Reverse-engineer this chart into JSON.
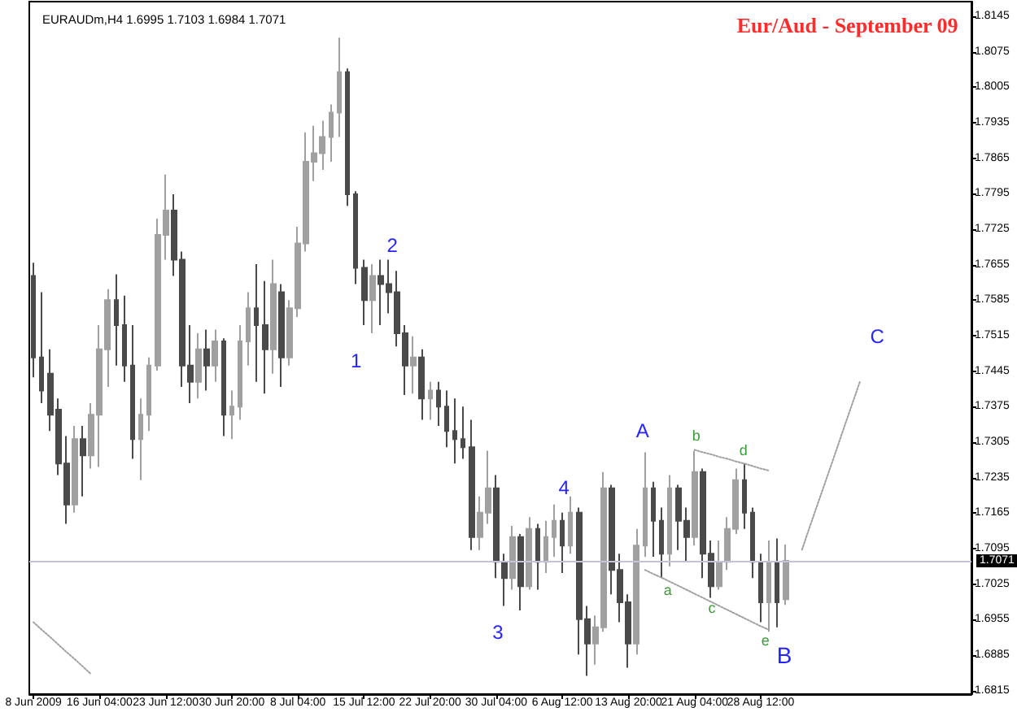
{
  "chart_data": {
    "type": "candlestick",
    "title": "Eur/Aud - September 09",
    "subtitle": "EURAUDm,H4 1.6995 1.7103 1.6984 1.7071",
    "categories": [
      "8 Jun 2009",
      null,
      null,
      null,
      null,
      null,
      null,
      null,
      "16 Jun 04:00",
      null,
      null,
      null,
      null,
      null,
      null,
      null,
      "23 Jun 12:00",
      null,
      null,
      null,
      null,
      null,
      null,
      null,
      "30 Jun 20:00",
      null,
      null,
      null,
      null,
      null,
      null,
      null,
      "8 Jul 04:00",
      null,
      null,
      null,
      null,
      null,
      null,
      null,
      "15 Jul 12:00",
      null,
      null,
      null,
      null,
      null,
      null,
      null,
      "22 Jul 20:00",
      null,
      null,
      null,
      null,
      null,
      null,
      null,
      "30 Jul 04:00",
      null,
      null,
      null,
      null,
      null,
      null,
      null,
      "6 Aug 12:00",
      null,
      null,
      null,
      null,
      null,
      null,
      null,
      "13 Aug 20:00",
      null,
      null,
      null,
      null,
      null,
      null,
      null,
      "21 Aug 04:00",
      null,
      null,
      null,
      null,
      null,
      null,
      null,
      "28 Aug 12:00",
      null,
      null,
      null,
      null,
      null,
      null,
      null,
      null,
      null,
      null,
      null,
      null,
      null,
      null,
      null,
      null,
      null,
      null,
      null,
      null,
      null,
      null,
      null,
      null,
      null
    ],
    "ylim": [
      1.6808,
      1.8174
    ],
    "yticks": [
      1.6815,
      1.6885,
      1.6955,
      1.7025,
      1.7095,
      1.7165,
      1.7235,
      1.7305,
      1.7375,
      1.7445,
      1.7515,
      1.7585,
      1.7655,
      1.7725,
      1.7795,
      1.7865,
      1.7935,
      1.8005,
      1.8075,
      1.8145
    ],
    "series": [
      {
        "colors": [
          "#4a4a4a",
          "#4a4a4a",
          "#4a4a4a",
          "#4a4a4a",
          "#4a4a4a",
          "#a0a0a0",
          "#4a4a4a",
          "#a0a0a0",
          "#a0a0a0",
          "#a0a0a0",
          "#4a4a4a",
          "#4a4a4a",
          "#4a4a4a",
          "#a0a0a0",
          "#a0a0a0",
          "#a0a0a0",
          "#a0a0a0",
          "#4a4a4a",
          "#4a4a4a",
          "#4a4a4a",
          "#a0a0a0",
          "#4a4a4a",
          "#a0a0a0",
          "#4a4a4a",
          "#a0a0a0",
          "#a0a0a0",
          "#a0a0a0",
          "#4a4a4a",
          "#4a4a4a",
          "#a0a0a0",
          "#4a4a4a",
          "#a0a0a0",
          "#a0a0a0",
          "#a0a0a0",
          "#a0a0a0",
          "#a0a0a0",
          "#a0a0a0",
          "#a0a0a0",
          "#4a4a4a",
          "#4a4a4a",
          "#4a4a4a",
          "#a0a0a0",
          "#4a4a4a",
          "#4a4a4a",
          "#4a4a4a",
          "#4a4a4a",
          "#a0a0a0",
          "#4a4a4a",
          "#a0a0a0",
          "#4a4a4a",
          "#4a4a4a",
          "#4a4a4a",
          "#4a4a4a",
          "#4a4a4a",
          "#a0a0a0",
          "#a0a0a0",
          "#4a4a4a",
          "#4a4a4a",
          "#a0a0a0",
          "#4a4a4a",
          "#a0a0a0",
          "#4a4a4a",
          "#a0a0a0",
          "#a0a0a0",
          "#4a4a4a",
          "#a0a0a0",
          "#4a4a4a",
          "#4a4a4a",
          "#a0a0a0",
          "#a0a0a0",
          "#4a4a4a",
          "#4a4a4a",
          "#4a4a4a",
          "#a0a0a0",
          "#a0a0a0",
          "#4a4a4a",
          "#4a4a4a",
          "#a0a0a0",
          "#4a4a4a",
          "#4a4a4a",
          "#a0a0a0",
          "#4a4a4a",
          "#4a4a4a",
          "#a0a0a0",
          "#a0a0a0",
          "#a0a0a0",
          "#4a4a4a",
          "#4a4a4a",
          "#4a4a4a",
          "#a0a0a0",
          "#4a4a4a",
          "#a0a0a0",
          null,
          null,
          null,
          null,
          null,
          null,
          null,
          null,
          null,
          null,
          null,
          null,
          null,
          null,
          null,
          null,
          null,
          null,
          null,
          null,
          null,
          null
        ],
        "ohlc": [
          [
            1.7633,
            1.7659,
            1.7433,
            1.7472
          ],
          [
            1.7472,
            1.7601,
            1.7382,
            1.7407
          ],
          [
            1.744,
            1.7488,
            1.7327,
            1.7359
          ],
          [
            1.7369,
            1.7391,
            1.724,
            1.7263
          ],
          [
            1.7263,
            1.7317,
            1.7144,
            1.7182
          ],
          [
            1.7182,
            1.7337,
            1.7166,
            1.7311
          ],
          [
            1.7311,
            1.7337,
            1.7198,
            1.7279
          ],
          [
            1.7279,
            1.7382,
            1.7253,
            1.7359
          ],
          [
            1.7359,
            1.7536,
            1.7256,
            1.7488
          ],
          [
            1.7488,
            1.7607,
            1.7414,
            1.7585
          ],
          [
            1.7585,
            1.7636,
            1.7456,
            1.7536
          ],
          [
            1.7536,
            1.7594,
            1.7424,
            1.7456
          ],
          [
            1.7456,
            1.7536,
            1.7272,
            1.7311
          ],
          [
            1.7311,
            1.7391,
            1.723,
            1.7359
          ],
          [
            1.7359,
            1.7472,
            1.7327,
            1.7456
          ],
          [
            1.7456,
            1.7746,
            1.7446,
            1.7714
          ],
          [
            1.7714,
            1.7833,
            1.7665,
            1.7762
          ],
          [
            1.7762,
            1.7794,
            1.7633,
            1.7665
          ],
          [
            1.7665,
            1.7681,
            1.7414,
            1.7456
          ],
          [
            1.7456,
            1.7536,
            1.7382,
            1.7424
          ],
          [
            1.7424,
            1.752,
            1.7391,
            1.7488
          ],
          [
            1.7488,
            1.7527,
            1.7407,
            1.7456
          ],
          [
            1.7456,
            1.7527,
            1.7424,
            1.7504
          ],
          [
            1.7504,
            1.751,
            1.7317,
            1.7359
          ],
          [
            1.7359,
            1.7407,
            1.7311,
            1.7375
          ],
          [
            1.7375,
            1.7536,
            1.7349,
            1.7504
          ],
          [
            1.7504,
            1.7601,
            1.7456,
            1.7569
          ],
          [
            1.7569,
            1.7656,
            1.7424,
            1.7536
          ],
          [
            1.7536,
            1.7623,
            1.7401,
            1.7488
          ],
          [
            1.7488,
            1.7665,
            1.744,
            1.7617
          ],
          [
            1.7601,
            1.7617,
            1.7414,
            1.7472
          ],
          [
            1.7472,
            1.7585,
            1.7456,
            1.7569
          ],
          [
            1.7569,
            1.773,
            1.7552,
            1.7697
          ],
          [
            1.7697,
            1.7916,
            1.7681,
            1.7858
          ],
          [
            1.7858,
            1.7929,
            1.782,
            1.7875
          ],
          [
            1.7875,
            1.7939,
            1.7842,
            1.7907
          ],
          [
            1.7907,
            1.7971,
            1.7858,
            1.7955
          ],
          [
            1.7955,
            1.8103,
            1.7907,
            1.8035
          ],
          [
            1.8035,
            1.8042,
            1.7771,
            1.7794
          ],
          [
            1.7794,
            1.78,
            1.7617,
            1.7649
          ],
          [
            1.7649,
            1.7665,
            1.7536,
            1.7585
          ],
          [
            1.7585,
            1.7656,
            1.752,
            1.7633
          ],
          [
            1.7633,
            1.7665,
            1.7536,
            1.7617
          ],
          [
            1.7617,
            1.7665,
            1.7559,
            1.7601
          ],
          [
            1.7601,
            1.7643,
            1.7494,
            1.752
          ],
          [
            1.752,
            1.7536,
            1.7398,
            1.7456
          ],
          [
            1.7456,
            1.7514,
            1.7401,
            1.7472
          ],
          [
            1.7472,
            1.7488,
            1.7349,
            1.7391
          ],
          [
            1.7391,
            1.7424,
            1.7349,
            1.7407
          ],
          [
            1.7407,
            1.7424,
            1.7337,
            1.7375
          ],
          [
            1.7375,
            1.7407,
            1.7295,
            1.7327
          ],
          [
            1.7327,
            1.7391,
            1.7263,
            1.7311
          ],
          [
            1.7311,
            1.7375,
            1.7272,
            1.7295
          ],
          [
            1.7295,
            1.7349,
            1.7092,
            1.7118
          ],
          [
            1.7118,
            1.7198,
            1.7092,
            1.7166
          ],
          [
            1.7166,
            1.7288,
            1.7144,
            1.7214
          ],
          [
            1.7214,
            1.724,
            1.7037,
            1.7069
          ],
          [
            1.7069,
            1.7085,
            1.6982,
            1.7037
          ],
          [
            1.7037,
            1.714,
            1.7014,
            1.7118
          ],
          [
            1.7118,
            1.7124,
            1.6973,
            1.7021
          ],
          [
            1.7021,
            1.7157,
            1.7014,
            1.7134
          ],
          [
            1.7134,
            1.7144,
            1.7014,
            1.7069
          ],
          [
            1.7069,
            1.715,
            1.7047,
            1.7118
          ],
          [
            1.7118,
            1.7182,
            1.7079,
            1.715
          ],
          [
            1.715,
            1.7166,
            1.7047,
            1.7101
          ],
          [
            1.7101,
            1.7198,
            1.7085,
            1.7166
          ],
          [
            1.7166,
            1.7176,
            1.6886,
            1.6956
          ],
          [
            1.6956,
            1.6982,
            1.6844,
            1.6908
          ],
          [
            1.6908,
            1.6963,
            1.6866,
            1.694
          ],
          [
            1.694,
            1.7246,
            1.6931,
            1.7214
          ],
          [
            1.7214,
            1.7221,
            1.7005,
            1.7053
          ],
          [
            1.7053,
            1.7085,
            1.695,
            1.6989
          ],
          [
            1.6989,
            1.7005,
            1.686,
            1.6908
          ],
          [
            1.6908,
            1.7134,
            1.6886,
            1.7101
          ],
          [
            1.7101,
            1.7285,
            1.7079,
            1.7214
          ],
          [
            1.7214,
            1.7227,
            1.7079,
            1.715
          ],
          [
            1.715,
            1.7176,
            1.7037,
            1.7085
          ],
          [
            1.7085,
            1.724,
            1.706,
            1.7214
          ],
          [
            1.7214,
            1.7221,
            1.7092,
            1.715
          ],
          [
            1.715,
            1.7176,
            1.7069,
            1.7118
          ],
          [
            1.7118,
            1.7288,
            1.7101,
            1.7246
          ],
          [
            1.7246,
            1.7253,
            1.7037,
            1.7085
          ],
          [
            1.7085,
            1.7111,
            1.6998,
            1.7021
          ],
          [
            1.7021,
            1.7111,
            1.7014,
            1.7069
          ],
          [
            1.7069,
            1.7157,
            1.7053,
            1.7134
          ],
          [
            1.7134,
            1.7253,
            1.7124,
            1.723
          ],
          [
            1.723,
            1.7263,
            1.7134,
            1.7166
          ],
          [
            1.7166,
            1.7176,
            1.7037,
            1.7069
          ],
          [
            1.7069,
            1.7085,
            1.695,
            1.6989
          ],
          [
            1.6989,
            1.7111,
            1.6931,
            1.7069
          ],
          [
            1.7069,
            1.7115,
            1.694,
            1.6989
          ],
          [
            1.6995,
            1.7103,
            1.6984,
            1.7071
          ],
          null,
          null,
          null,
          null,
          null,
          null,
          null,
          null,
          null,
          null,
          null,
          null,
          null,
          null,
          null,
          null,
          null,
          null,
          null,
          null,
          null,
          null
        ]
      },
      {
        "type": "line",
        "color": "#a0a0a0",
        "line_style": "dotted",
        "values": [
          1.695,
          1.6935,
          1.6921,
          1.6906,
          1.6891,
          1.6877,
          1.6862,
          1.6847,
          null,
          null,
          null,
          null,
          null,
          null,
          null,
          null,
          null,
          null,
          null,
          null,
          null,
          null,
          null,
          null,
          null,
          null,
          null,
          null,
          null,
          null,
          null,
          null,
          null,
          null,
          null,
          null,
          null,
          null,
          null,
          null,
          null,
          null,
          null,
          null,
          null,
          null,
          null,
          null,
          null,
          null,
          null,
          null,
          null,
          null,
          null,
          null,
          null,
          null,
          null,
          null,
          null,
          null,
          null,
          null,
          null,
          null,
          null,
          null,
          null,
          null,
          null,
          null,
          null,
          null,
          null,
          null,
          null,
          null,
          null,
          null,
          null,
          null,
          null,
          null,
          null,
          null,
          null,
          null,
          null,
          null,
          null,
          null,
          null,
          null,
          null,
          null,
          null,
          null,
          null,
          null,
          null,
          null,
          null,
          null,
          null,
          null,
          null,
          null,
          null,
          null,
          null,
          null,
          null,
          null
        ]
      },
      {
        "type": "line",
        "color": "#a0a0a0",
        "line_style": "dotted",
        "values": [
          null,
          null,
          null,
          null,
          null,
          null,
          null,
          null,
          null,
          null,
          null,
          null,
          null,
          null,
          null,
          null,
          null,
          null,
          null,
          null,
          null,
          null,
          null,
          null,
          null,
          null,
          null,
          null,
          null,
          null,
          null,
          null,
          null,
          null,
          null,
          null,
          null,
          null,
          null,
          null,
          null,
          null,
          null,
          null,
          null,
          null,
          null,
          null,
          null,
          null,
          null,
          null,
          null,
          null,
          null,
          null,
          null,
          null,
          null,
          null,
          null,
          null,
          null,
          null,
          null,
          null,
          null,
          null,
          null,
          null,
          null,
          null,
          null,
          null,
          null,
          null,
          null,
          null,
          null,
          null,
          1.729,
          1.7285,
          1.7281,
          1.7276,
          1.7272,
          1.7267,
          1.7263,
          1.7258,
          1.7253,
          1.7249,
          null,
          null,
          null,
          null,
          null,
          null,
          null,
          null,
          null,
          null,
          null,
          null,
          null,
          null,
          null,
          null,
          null,
          null,
          null,
          null,
          null,
          null,
          null,
          null
        ]
      },
      {
        "type": "line",
        "color": "#a0a0a0",
        "line_style": "dotted",
        "values": [
          null,
          null,
          null,
          null,
          null,
          null,
          null,
          null,
          null,
          null,
          null,
          null,
          null,
          null,
          null,
          null,
          null,
          null,
          null,
          null,
          null,
          null,
          null,
          null,
          null,
          null,
          null,
          null,
          null,
          null,
          null,
          null,
          null,
          null,
          null,
          null,
          null,
          null,
          null,
          null,
          null,
          null,
          null,
          null,
          null,
          null,
          null,
          null,
          null,
          null,
          null,
          null,
          null,
          null,
          null,
          null,
          null,
          null,
          null,
          null,
          null,
          null,
          null,
          null,
          null,
          null,
          null,
          null,
          null,
          null,
          null,
          null,
          null,
          null,
          1.7053,
          1.7045,
          1.7038,
          1.703,
          1.7022,
          1.7014,
          1.7006,
          1.6998,
          1.699,
          1.6982,
          1.6974,
          1.6966,
          1.6958,
          1.695,
          1.6942,
          1.6935,
          null,
          null,
          null,
          null,
          null,
          null,
          null,
          null,
          null,
          null,
          null,
          null,
          null,
          null,
          null,
          null,
          null,
          null,
          null,
          null,
          null,
          null,
          null,
          null
        ]
      },
      {
        "type": "line",
        "color": "#a0a0a0",
        "line_style": "dotted",
        "values": [
          null,
          null,
          null,
          null,
          null,
          null,
          null,
          null,
          null,
          null,
          null,
          null,
          null,
          null,
          null,
          null,
          null,
          null,
          null,
          null,
          null,
          null,
          null,
          null,
          null,
          null,
          null,
          null,
          null,
          null,
          null,
          null,
          null,
          null,
          null,
          null,
          null,
          null,
          null,
          null,
          null,
          null,
          null,
          null,
          null,
          null,
          null,
          null,
          null,
          null,
          null,
          null,
          null,
          null,
          null,
          null,
          null,
          null,
          null,
          null,
          null,
          null,
          null,
          null,
          null,
          null,
          null,
          null,
          null,
          null,
          null,
          null,
          null,
          null,
          null,
          null,
          null,
          null,
          null,
          null,
          null,
          null,
          null,
          null,
          null,
          null,
          null,
          null,
          null,
          null,
          null,
          null,
          null,
          1.7093,
          1.7141,
          1.7188,
          1.7235,
          1.7282,
          1.733,
          1.7377,
          1.7424,
          null,
          null,
          null,
          null,
          null,
          null,
          null,
          null,
          null,
          null,
          null,
          null,
          null
        ]
      }
    ],
    "ref_lines": [
      {
        "axis": "y",
        "value": 1.7071,
        "label": "1.7071",
        "color": "#c8c0d8"
      }
    ],
    "annotations": [
      "1",
      "2",
      "3",
      "4",
      "A",
      "B",
      "C",
      "a",
      "b",
      "c",
      "d",
      "e"
    ]
  }
}
